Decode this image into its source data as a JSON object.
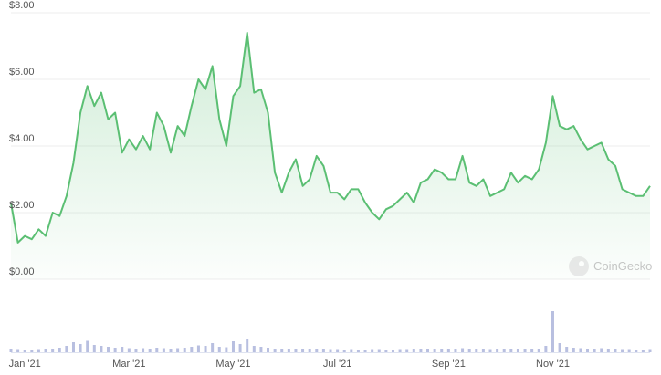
{
  "chart_data": {
    "type": "line",
    "categories": [
      null,
      null,
      "Jan '21",
      null,
      null,
      null,
      null,
      null,
      null,
      null,
      null,
      null,
      null,
      null,
      null,
      null,
      null,
      "Mar '21",
      null,
      null,
      null,
      null,
      null,
      null,
      null,
      null,
      null,
      null,
      null,
      null,
      null,
      null,
      "May '21",
      null,
      null,
      null,
      null,
      null,
      null,
      null,
      null,
      null,
      null,
      null,
      null,
      null,
      null,
      "Jul '21",
      null,
      null,
      null,
      null,
      null,
      null,
      null,
      null,
      null,
      null,
      null,
      null,
      null,
      null,
      null,
      "Sep '21",
      null,
      null,
      null,
      null,
      null,
      null,
      null,
      null,
      null,
      null,
      null,
      null,
      null,
      null,
      "Nov '21",
      null,
      null,
      null,
      null,
      null,
      null,
      null,
      null,
      null,
      null,
      null,
      null,
      null,
      null
    ],
    "values": [
      2.3,
      1.1,
      1.3,
      1.2,
      1.5,
      1.3,
      2.0,
      1.9,
      2.5,
      3.5,
      5.0,
      5.8,
      5.2,
      5.6,
      4.8,
      5.0,
      3.8,
      4.2,
      3.9,
      4.3,
      3.9,
      5.0,
      4.6,
      3.8,
      4.6,
      4.3,
      5.2,
      6.0,
      5.7,
      6.4,
      4.8,
      4.0,
      5.5,
      5.8,
      7.4,
      5.6,
      5.7,
      5.0,
      3.2,
      2.6,
      3.2,
      3.6,
      2.8,
      3.0,
      3.7,
      3.4,
      2.6,
      2.6,
      2.4,
      2.7,
      2.7,
      2.3,
      2.0,
      1.8,
      2.1,
      2.2,
      2.4,
      2.6,
      2.3,
      2.9,
      3.0,
      3.3,
      3.2,
      3.0,
      3.0,
      3.7,
      2.9,
      2.8,
      3.0,
      2.5,
      2.6,
      2.7,
      3.2,
      2.9,
      3.1,
      3.0,
      3.3,
      4.1,
      5.5,
      4.6,
      4.5,
      4.6,
      4.2,
      3.9,
      4.0,
      4.1,
      3.6,
      3.4,
      2.7,
      2.6,
      2.5,
      2.5,
      2.8
    ],
    "color": "#5bbf73",
    "ylim": [
      0,
      8
    ],
    "yticks": [
      {
        "value": 0,
        "label": "$0.00"
      },
      {
        "value": 2,
        "label": "$2.00"
      },
      {
        "value": 4,
        "label": "$4.00"
      },
      {
        "value": 6,
        "label": "$6.00"
      },
      {
        "value": 8,
        "label": "$8.00"
      }
    ],
    "grid": true,
    "volume": {
      "color": "#b8bfe0",
      "axis": "y2",
      "values": [
        6,
        5,
        4,
        4,
        5,
        6,
        8,
        10,
        14,
        22,
        18,
        25,
        16,
        14,
        12,
        10,
        12,
        9,
        8,
        9,
        8,
        10,
        9,
        8,
        9,
        10,
        12,
        15,
        14,
        20,
        12,
        11,
        24,
        18,
        28,
        14,
        12,
        10,
        8,
        7,
        6,
        7,
        6,
        6,
        7,
        6,
        5,
        5,
        4,
        5,
        4,
        4,
        5,
        5,
        4,
        4,
        5,
        5,
        6,
        6,
        7,
        8,
        7,
        6,
        6,
        9,
        6,
        6,
        7,
        5,
        6,
        6,
        8,
        6,
        7,
        6,
        8,
        14,
        90,
        20,
        12,
        10,
        9,
        8,
        8,
        9,
        7,
        6,
        5,
        5,
        4,
        4,
        5
      ]
    },
    "y2lim": [
      0,
      100
    ],
    "watermark": "CoinGecko"
  }
}
